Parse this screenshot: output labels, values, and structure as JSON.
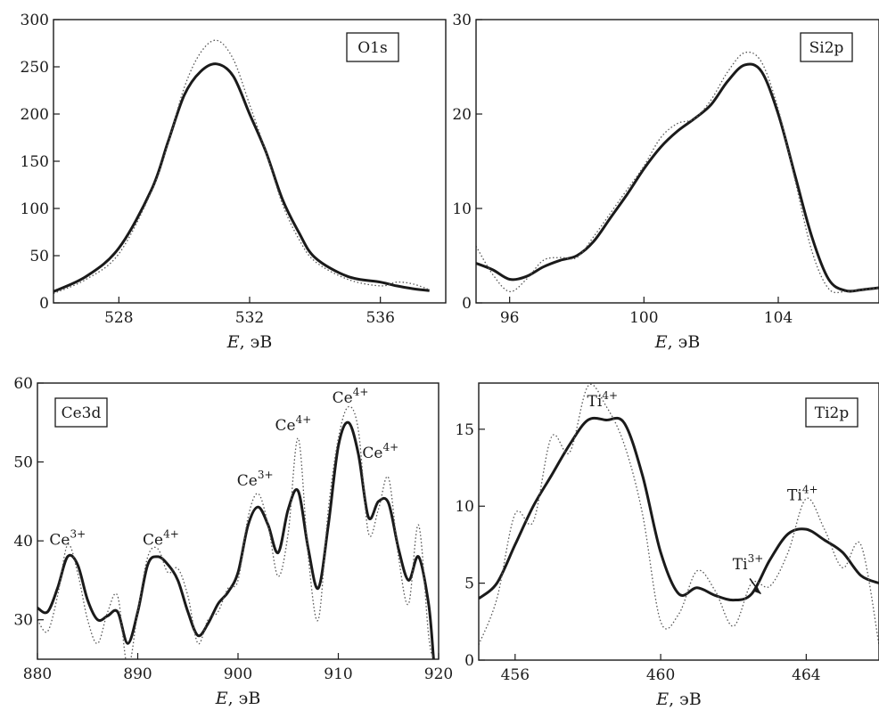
{
  "chart_data": [
    {
      "id": "o1s",
      "type": "line",
      "panel_label": "O1s",
      "xlabel_var": "E",
      "xlabel_unit": ", эВ",
      "ylabel": "",
      "xlim": [
        526,
        538
      ],
      "ylim": [
        0,
        300
      ],
      "xticks": [
        528,
        532,
        536
      ],
      "yticks": [
        0,
        50,
        100,
        150,
        200,
        250,
        300
      ],
      "series": [
        {
          "style": "solid",
          "x": [
            526,
            527,
            528,
            529,
            529.5,
            530,
            530.5,
            531,
            531.5,
            532,
            532.5,
            533,
            533.5,
            534,
            535,
            536,
            536.5,
            537,
            537.5
          ],
          "y": [
            12,
            28,
            58,
            120,
            170,
            220,
            245,
            253,
            240,
            200,
            160,
            110,
            75,
            48,
            28,
            22,
            18,
            15,
            13
          ]
        },
        {
          "style": "dotted",
          "x": [
            526,
            527,
            528,
            529,
            529.5,
            530,
            530.5,
            531,
            531.5,
            532,
            532.5,
            533,
            533.5,
            534,
            535,
            536,
            536.5,
            537,
            537.5
          ],
          "y": [
            10,
            25,
            52,
            118,
            168,
            228,
            265,
            278,
            258,
            210,
            160,
            105,
            68,
            44,
            25,
            18,
            22,
            20,
            14
          ]
        }
      ],
      "annotations": []
    },
    {
      "id": "si2p",
      "type": "line",
      "panel_label": "Si2p",
      "xlabel_var": "E",
      "xlabel_unit": ", эВ",
      "ylabel": "",
      "xlim": [
        95,
        107
      ],
      "ylim": [
        0,
        30
      ],
      "xticks": [
        96,
        100,
        104
      ],
      "yticks": [
        0,
        10,
        20,
        30
      ],
      "series": [
        {
          "style": "solid",
          "x": [
            95,
            95.5,
            96,
            96.5,
            97,
            97.5,
            98,
            98.5,
            99,
            99.5,
            100,
            100.5,
            101,
            101.5,
            102,
            102.5,
            103,
            103.5,
            104,
            104.5,
            105,
            105.5,
            106,
            106.5,
            107
          ],
          "y": [
            4.2,
            3.5,
            2.5,
            2.8,
            3.8,
            4.5,
            5.0,
            6.5,
            9.0,
            11.5,
            14.2,
            16.5,
            18.2,
            19.5,
            21.0,
            23.5,
            25.2,
            24.5,
            20.0,
            13.5,
            7.0,
            2.5,
            1.3,
            1.4,
            1.6
          ]
        },
        {
          "style": "dotted",
          "x": [
            95,
            95.5,
            96,
            96.5,
            97,
            97.5,
            98,
            98.5,
            99,
            99.5,
            100,
            100.5,
            101,
            101.5,
            102,
            102.5,
            103,
            103.5,
            104,
            104.5,
            105,
            105.5,
            106,
            106.5,
            107
          ],
          "y": [
            6.0,
            3.0,
            1.2,
            2.5,
            4.5,
            4.8,
            4.8,
            7.0,
            9.5,
            12.0,
            14.5,
            17.5,
            19.0,
            19.5,
            21.5,
            24.5,
            26.5,
            25.5,
            20.5,
            13.0,
            5.5,
            1.5,
            1.2,
            1.4,
            1.6
          ]
        }
      ],
      "annotations": []
    },
    {
      "id": "ce3d",
      "type": "line",
      "panel_label": "Ce3d",
      "xlabel_var": "E",
      "xlabel_unit": ", эВ",
      "ylabel": "",
      "xlim": [
        880,
        920
      ],
      "ylim": [
        25,
        60
      ],
      "xticks": [
        880,
        890,
        900,
        910,
        920
      ],
      "yticks": [
        30,
        40,
        50,
        60
      ],
      "series": [
        {
          "style": "solid",
          "x": [
            880,
            881,
            882,
            883,
            884,
            885,
            886,
            887,
            888,
            889,
            890,
            891,
            892,
            893,
            894,
            895,
            896,
            897,
            898,
            899,
            900,
            901,
            902,
            903,
            904,
            905,
            906,
            907,
            908,
            909,
            910,
            911,
            912,
            913,
            914,
            915,
            916,
            917,
            918,
            919,
            919.5
          ],
          "y": [
            31.5,
            31,
            34,
            38,
            37,
            32.5,
            30,
            30.5,
            31,
            27,
            31,
            37,
            38,
            37,
            35,
            31,
            28,
            29.5,
            32,
            33.5,
            36,
            42,
            44.3,
            42,
            38.5,
            44,
            46.3,
            39,
            34,
            42,
            52,
            55,
            51,
            43,
            45,
            44.8,
            39,
            35,
            38,
            32,
            25
          ]
        },
        {
          "style": "dotted",
          "x": [
            880,
            881,
            882,
            883,
            884,
            885,
            886,
            887,
            888,
            889,
            890,
            891,
            892,
            893,
            894,
            895,
            896,
            897,
            898,
            899,
            900,
            901,
            902,
            903,
            904,
            905,
            906,
            907,
            908,
            909,
            910,
            911,
            912,
            913,
            914,
            915,
            916,
            917,
            918,
            919,
            919.5
          ],
          "y": [
            30,
            28.5,
            33,
            39.5,
            36,
            30,
            27,
            31,
            33,
            24,
            31,
            38,
            39,
            36,
            36.5,
            33,
            27,
            30,
            31,
            34,
            35,
            43,
            46,
            42,
            35.5,
            41,
            53,
            38,
            30,
            44,
            53,
            57,
            54,
            41,
            44,
            48,
            38,
            32,
            42,
            28,
            25
          ]
        }
      ],
      "annotations": [
        {
          "base": "Ce",
          "sup": "3+",
          "x": 883,
          "y": 39.5
        },
        {
          "base": "Ce",
          "sup": "4+",
          "x": 892.3,
          "y": 39.5
        },
        {
          "base": "Ce",
          "sup": "3+",
          "x": 901.7,
          "y": 47
        },
        {
          "base": "Ce",
          "sup": "4+",
          "x": 905.5,
          "y": 54
        },
        {
          "base": "Ce",
          "sup": "4+",
          "x": 911.2,
          "y": 57.5
        },
        {
          "base": "Ce",
          "sup": "4+",
          "x": 914.2,
          "y": 50.5
        }
      ]
    },
    {
      "id": "ti2p",
      "type": "line",
      "panel_label": "Ti2p",
      "xlabel_var": "E",
      "xlabel_unit": ", эВ",
      "ylabel": "",
      "xlim": [
        455,
        466
      ],
      "ylim": [
        0,
        18
      ],
      "xticks": [
        456,
        460,
        464
      ],
      "yticks": [
        0,
        5,
        10,
        15
      ],
      "series": [
        {
          "style": "solid",
          "x": [
            455,
            455.5,
            456,
            456.5,
            457,
            457.5,
            458,
            458.5,
            459,
            459.5,
            460,
            460.5,
            461,
            461.5,
            462,
            462.5,
            463,
            463.5,
            464,
            464.5,
            465,
            465.5,
            466
          ],
          "y": [
            4.0,
            5.0,
            7.5,
            10.0,
            12.0,
            14.0,
            15.6,
            15.6,
            15.4,
            12.0,
            7.0,
            4.3,
            4.7,
            4.2,
            3.9,
            4.3,
            6.5,
            8.2,
            8.5,
            7.8,
            7.0,
            5.5,
            5.0
          ]
        },
        {
          "style": "dotted",
          "x": [
            455,
            455.5,
            456,
            456.5,
            457,
            457.5,
            458,
            458.5,
            459,
            459.5,
            460,
            460.5,
            461,
            461.5,
            462,
            462.5,
            463,
            463.5,
            464,
            464.5,
            465,
            465.5,
            466
          ],
          "y": [
            1.0,
            4.0,
            9.5,
            9.0,
            14.5,
            13.5,
            17.8,
            16.5,
            14.0,
            9.5,
            2.5,
            3.0,
            5.8,
            4.5,
            2.2,
            5.0,
            4.8,
            7.0,
            10.5,
            8.5,
            6.0,
            7.5,
            1.0
          ]
        }
      ],
      "annotations": [
        {
          "base": "Ti",
          "sup": "4+",
          "x": 458.4,
          "y": 16.5
        },
        {
          "base": "Ti",
          "sup": "3+",
          "x": 462.4,
          "y": 5.9
        },
        {
          "base": "Ti",
          "sup": "4+",
          "x": 463.9,
          "y": 10.4
        }
      ]
    }
  ]
}
